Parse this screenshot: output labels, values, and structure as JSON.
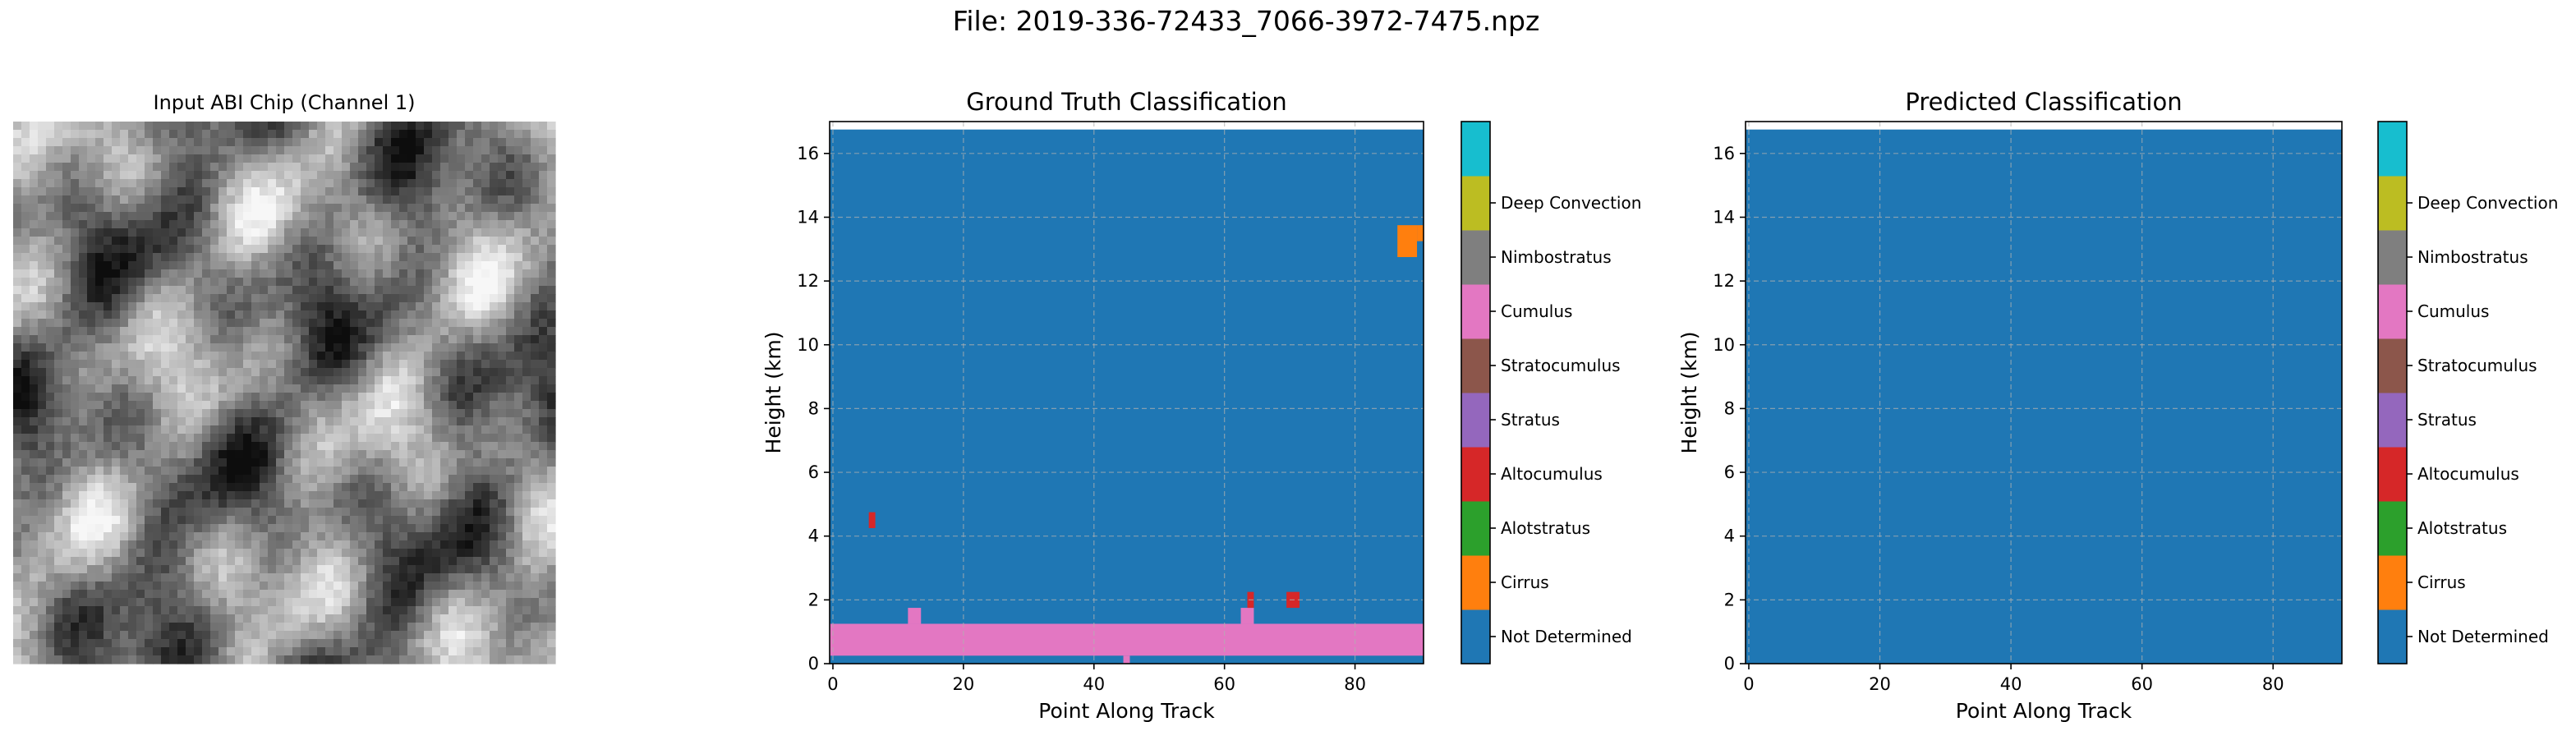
{
  "figure": {
    "suptitle": "File: 2019-336-72433_7066-3972-7475.npz"
  },
  "input_panel": {
    "title": "Input ABI Chip (Channel 1)"
  },
  "classes": [
    {
      "label": "Not Determined",
      "color": "#1f77b4"
    },
    {
      "label": "Cirrus",
      "color": "#ff7f0e"
    },
    {
      "label": "Alotstratus",
      "color": "#2ca02c"
    },
    {
      "label": "Altocumulus",
      "color": "#d62728"
    },
    {
      "label": "Stratus",
      "color": "#9467bd"
    },
    {
      "label": "Stratocumulus",
      "color": "#8c564b"
    },
    {
      "label": "Cumulus",
      "color": "#e377c2"
    },
    {
      "label": "Nimbostratus",
      "color": "#7f7f7f"
    },
    {
      "label": "Deep Convection",
      "color": "#bcbd22"
    },
    {
      "label": "",
      "color": "#17becf"
    }
  ],
  "chart_data": [
    {
      "type": "heatmap",
      "title": "Ground Truth Classification",
      "xlabel": "Point Along Track",
      "ylabel": "Height (km)",
      "xlim": [
        -0.5,
        90.5
      ],
      "ylim": [
        0,
        17
      ],
      "xticks": [
        0,
        20,
        40,
        60,
        80
      ],
      "yticks": [
        0,
        2,
        4,
        6,
        8,
        10,
        12,
        14,
        16
      ],
      "grid": true,
      "background_class": "Not Determined",
      "data_top_km": 16.75,
      "regions": [
        {
          "class": "Cumulus",
          "x": [
            -0.5,
            90.5
          ],
          "y": [
            0.25,
            1.25
          ]
        },
        {
          "class": "Cumulus",
          "x": [
            44.5,
            45.5
          ],
          "y": [
            0.0,
            0.25
          ]
        },
        {
          "class": "Cumulus",
          "x": [
            11.5,
            13.5
          ],
          "y": [
            1.25,
            1.75
          ]
        },
        {
          "class": "Cumulus",
          "x": [
            62.5,
            64.5
          ],
          "y": [
            1.25,
            1.75
          ]
        },
        {
          "class": "Altocumulus",
          "x": [
            63.5,
            64.5
          ],
          "y": [
            1.75,
            2.25
          ]
        },
        {
          "class": "Altocumulus",
          "x": [
            69.5,
            71.5
          ],
          "y": [
            1.75,
            2.25
          ]
        },
        {
          "class": "Altocumulus",
          "x": [
            5.5,
            6.5
          ],
          "y": [
            4.25,
            4.75
          ]
        },
        {
          "class": "Cirrus",
          "x": [
            86.5,
            89.5
          ],
          "y": [
            12.75,
            13.75
          ]
        },
        {
          "class": "Cirrus",
          "x": [
            89.5,
            90.5
          ],
          "y": [
            13.25,
            13.75
          ]
        }
      ],
      "colorbar": {
        "labels_from": "classes"
      }
    },
    {
      "type": "heatmap",
      "title": "Predicted Classification",
      "xlabel": "Point Along Track",
      "ylabel": "Height (km)",
      "xlim": [
        -0.5,
        90.5
      ],
      "ylim": [
        0,
        17
      ],
      "xticks": [
        0,
        20,
        40,
        60,
        80
      ],
      "yticks": [
        0,
        2,
        4,
        6,
        8,
        10,
        12,
        14,
        16
      ],
      "grid": true,
      "background_class": "Not Determined",
      "data_top_km": 16.75,
      "regions": [],
      "colorbar": {
        "labels_from": "classes"
      }
    }
  ]
}
